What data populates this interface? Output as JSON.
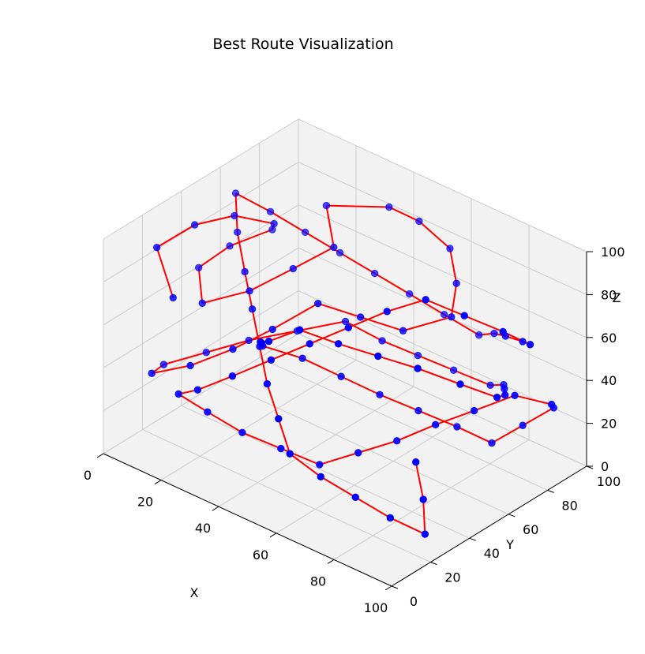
{
  "chart_data": {
    "type": "scatter3d",
    "title": "Best Route Visualization",
    "xlabel": "X",
    "ylabel": "Y",
    "zlabel": "Z",
    "xlim": [
      0,
      100
    ],
    "ylim": [
      0,
      100
    ],
    "zlim": [
      0,
      100
    ],
    "xticks": [
      "0",
      "20",
      "40",
      "60",
      "80",
      "100"
    ],
    "yticks": [
      "0",
      "20",
      "40",
      "60",
      "80",
      "100"
    ],
    "zticks": [
      "0",
      "20",
      "40",
      "60",
      "80",
      "100"
    ],
    "grid": true,
    "point_color": "#0000ff",
    "route_color": "#ff0000",
    "pane_color": "#f2f2f2",
    "route_order": "points connected in listed order",
    "points": [
      [
        12,
        18,
        70
      ],
      [
        5,
        20,
        88
      ],
      [
        8,
        35,
        92
      ],
      [
        15,
        45,
        95
      ],
      [
        22,
        55,
        90
      ],
      [
        18,
        60,
        82
      ],
      [
        10,
        50,
        75
      ],
      [
        6,
        40,
        68
      ],
      [
        14,
        30,
        62
      ],
      [
        25,
        38,
        70
      ],
      [
        32,
        50,
        78
      ],
      [
        38,
        62,
        85
      ],
      [
        30,
        70,
        95
      ],
      [
        45,
        80,
        98
      ],
      [
        50,
        88,
        90
      ],
      [
        58,
        92,
        80
      ],
      [
        65,
        85,
        72
      ],
      [
        70,
        75,
        65
      ],
      [
        60,
        65,
        58
      ],
      [
        52,
        55,
        65
      ],
      [
        44,
        45,
        72
      ],
      [
        35,
        35,
        60
      ],
      [
        28,
        25,
        52
      ],
      [
        20,
        15,
        45
      ],
      [
        10,
        10,
        38
      ],
      [
        4,
        25,
        30
      ],
      [
        12,
        35,
        35
      ],
      [
        20,
        45,
        40
      ],
      [
        30,
        55,
        45
      ],
      [
        40,
        65,
        50
      ],
      [
        48,
        72,
        42
      ],
      [
        55,
        80,
        35
      ],
      [
        62,
        88,
        28
      ],
      [
        70,
        95,
        22
      ],
      [
        78,
        90,
        30
      ],
      [
        85,
        80,
        38
      ],
      [
        92,
        70,
        45
      ],
      [
        96,
        60,
        52
      ],
      [
        90,
        50,
        60
      ],
      [
        82,
        40,
        68
      ],
      [
        75,
        30,
        75
      ],
      [
        68,
        20,
        82
      ],
      [
        60,
        12,
        88
      ],
      [
        52,
        8,
        80
      ],
      [
        45,
        14,
        72
      ],
      [
        40,
        22,
        64
      ],
      [
        35,
        30,
        55
      ],
      [
        42,
        40,
        48
      ],
      [
        50,
        48,
        40
      ],
      [
        58,
        56,
        32
      ],
      [
        66,
        64,
        25
      ],
      [
        74,
        72,
        18
      ],
      [
        82,
        78,
        12
      ],
      [
        88,
        85,
        20
      ],
      [
        94,
        92,
        28
      ],
      [
        98,
        85,
        36
      ],
      [
        92,
        75,
        42
      ],
      [
        84,
        66,
        35
      ],
      [
        76,
        58,
        28
      ],
      [
        68,
        50,
        20
      ],
      [
        60,
        42,
        14
      ],
      [
        52,
        34,
        8
      ],
      [
        44,
        26,
        15
      ],
      [
        36,
        18,
        22
      ],
      [
        28,
        12,
        30
      ],
      [
        22,
        6,
        38
      ],
      [
        30,
        4,
        46
      ],
      [
        38,
        10,
        54
      ],
      [
        46,
        18,
        62
      ],
      [
        54,
        26,
        70
      ],
      [
        62,
        34,
        78
      ],
      [
        70,
        42,
        86
      ],
      [
        78,
        50,
        92
      ],
      [
        86,
        58,
        85
      ],
      [
        94,
        66,
        78
      ],
      [
        98,
        74,
        70
      ],
      [
        90,
        82,
        62
      ],
      [
        80,
        88,
        55
      ],
      [
        72,
        94,
        48
      ],
      [
        64,
        98,
        40
      ],
      [
        56,
        92,
        48
      ],
      [
        48,
        86,
        56
      ],
      [
        40,
        80,
        64
      ],
      [
        32,
        74,
        72
      ],
      [
        24,
        68,
        80
      ],
      [
        16,
        62,
        88
      ],
      [
        8,
        56,
        95
      ],
      [
        14,
        48,
        85
      ],
      [
        22,
        40,
        76
      ],
      [
        30,
        32,
        68
      ],
      [
        38,
        24,
        60
      ],
      [
        46,
        16,
        52
      ],
      [
        54,
        10,
        44
      ],
      [
        62,
        4,
        36
      ],
      [
        70,
        8,
        28
      ],
      [
        78,
        14,
        20
      ],
      [
        86,
        20,
        12
      ],
      [
        94,
        26,
        6
      ],
      [
        88,
        34,
        14
      ],
      [
        80,
        42,
        22
      ]
    ]
  }
}
